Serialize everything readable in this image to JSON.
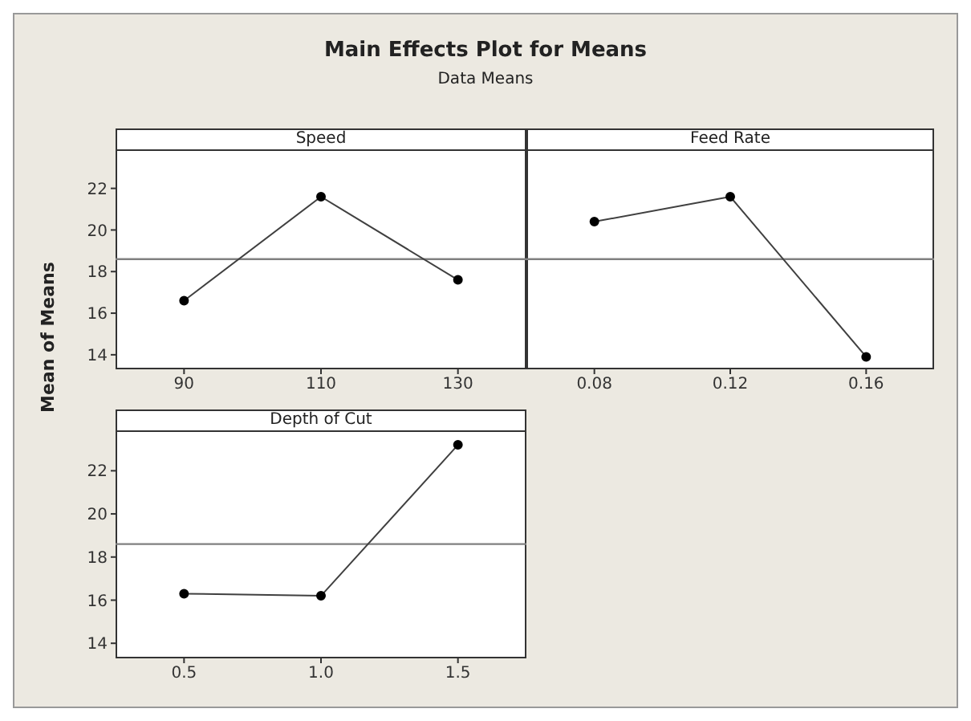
{
  "chart_data": [
    {
      "type": "line",
      "title": "Speed",
      "ylabel": "Mean of Means",
      "annotations": [
        "Main Effects Plot for Means",
        "Data Means"
      ],
      "categories": [
        "90",
        "110",
        "130"
      ],
      "values": [
        16.6,
        21.6,
        17.6
      ],
      "color": "#404040",
      "ylim": [
        13.3,
        23.8
      ],
      "yticks": [
        14,
        16,
        18,
        20,
        22
      ],
      "ref_lines": [
        {
          "axis": "y",
          "value": 18.6,
          "color": "#808080"
        }
      ],
      "marker": "circle",
      "line_style": "solid",
      "grid": false,
      "legend": false
    },
    {
      "type": "line",
      "title": "Feed Rate",
      "categories": [
        "0.08",
        "0.12",
        "0.16"
      ],
      "values": [
        20.4,
        21.6,
        13.9
      ],
      "color": "#404040",
      "ylim": [
        13.3,
        23.8
      ],
      "yticks": [
        14,
        16,
        18,
        20,
        22
      ],
      "tick_labels": "x",
      "ref_lines": [
        {
          "axis": "y",
          "value": 18.6,
          "color": "#808080"
        }
      ],
      "marker": "circle",
      "line_style": "solid",
      "grid": false,
      "legend": false
    },
    {
      "type": "line",
      "title": "Depth of Cut",
      "categories": [
        "0.5",
        "1.0",
        "1.5"
      ],
      "values": [
        16.3,
        16.2,
        23.2
      ],
      "color": "#404040",
      "ylim": [
        13.3,
        23.8
      ],
      "yticks": [
        14,
        16,
        18,
        20,
        22
      ],
      "ref_lines": [
        {
          "axis": "y",
          "value": 18.6,
          "color": "#808080"
        }
      ],
      "marker": "circle",
      "line_style": "solid",
      "grid": false,
      "legend": false
    }
  ]
}
